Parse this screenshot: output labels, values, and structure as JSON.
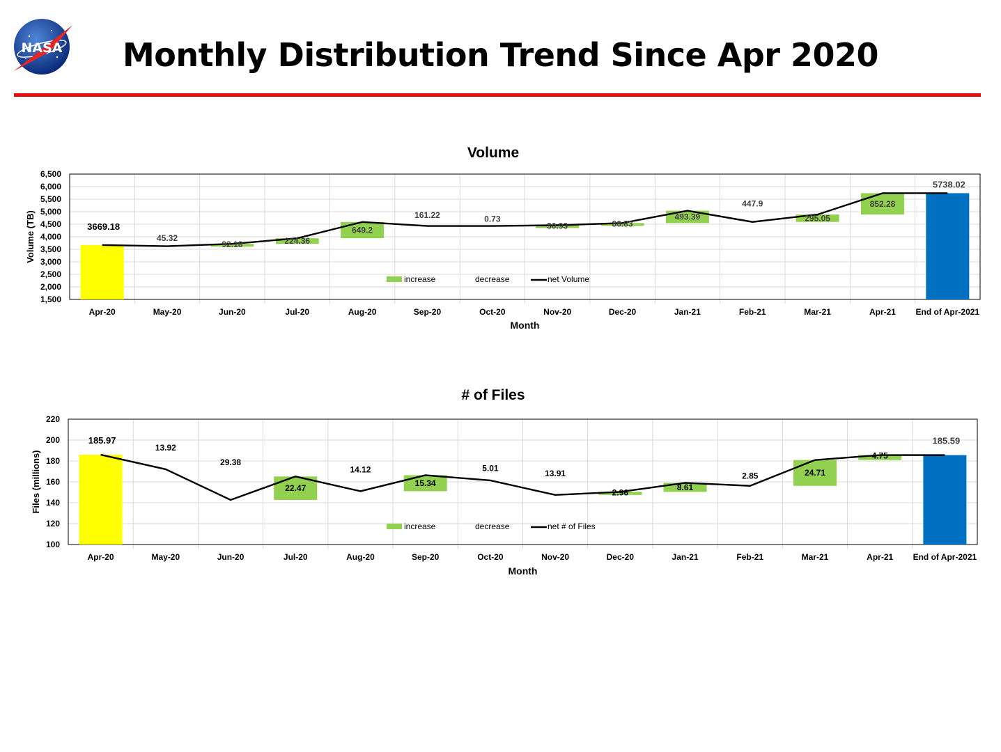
{
  "page": {
    "title": "Monthly Distribution Trend Since Apr 2020",
    "logo_text": "NASA",
    "colors": {
      "rule": "#e30b0b",
      "increase": "#92d050",
      "start": "#ffff00",
      "end": "#0070c0",
      "line": "#000000"
    }
  },
  "chart_data": [
    {
      "type": "bar",
      "subtype": "waterfall",
      "title": "Volume",
      "xlabel": "Month",
      "ylabel": "Volume (TB)",
      "ylim": [
        1500,
        6500
      ],
      "yticks": [
        1500,
        2000,
        2500,
        3000,
        3500,
        4000,
        4500,
        5000,
        5500,
        6000,
        6500
      ],
      "ytick_labels": [
        "1,500",
        "2,000",
        "2,500",
        "3,000",
        "3,500",
        "4,000",
        "4,500",
        "5,000",
        "5,500",
        "6,000",
        "6,500"
      ],
      "categories": [
        "Apr-20",
        "May-20",
        "Jun-20",
        "Jul-20",
        "Aug-20",
        "Sep-20",
        "Oct-20",
        "Nov-20",
        "Dec-20",
        "Jan-21",
        "Feb-21",
        "Mar-21",
        "Apr-21",
        "End of Apr-2021"
      ],
      "start_value": 3669.18,
      "start_label": "3669.18",
      "end_value": 5738.02,
      "end_label": "5738.02",
      "changes": [
        null,
        -45.32,
        92.18,
        224.36,
        649.2,
        -161.22,
        -0.73,
        30.93,
        86.83,
        493.39,
        -447.9,
        295.05,
        852.28,
        null
      ],
      "change_labels": [
        "",
        "45.32",
        "92.18",
        "224.36",
        "649.2",
        "161.22",
        "0.73",
        "30.93",
        "86.83",
        "493.39",
        "447.9",
        "295.05",
        "852.28",
        ""
      ],
      "net": [
        3669.18,
        3623.86,
        3716.04,
        3940.4,
        4589.6,
        4428.38,
        4427.65,
        4458.58,
        4545.41,
        5038.8,
        4590.9,
        4885.95,
        5738.23,
        5738.02
      ],
      "legend": [
        "increase",
        "decrease",
        "net Volume"
      ],
      "legend_position": "center"
    },
    {
      "type": "bar",
      "subtype": "waterfall",
      "title": "# of Files",
      "xlabel": "Month",
      "ylabel": "Files (millions)",
      "ylim": [
        100,
        220
      ],
      "yticks": [
        100,
        120,
        140,
        160,
        180,
        200,
        220
      ],
      "ytick_labels": [
        "100",
        "120",
        "140",
        "160",
        "180",
        "200",
        "220"
      ],
      "categories": [
        "Apr-20",
        "May-20",
        "Jun-20",
        "Jul-20",
        "Aug-20",
        "Sep-20",
        "Oct-20",
        "Nov-20",
        "Dec-20",
        "Jan-21",
        "Feb-21",
        "Mar-21",
        "Apr-21",
        "End of Apr-2021"
      ],
      "start_value": 185.97,
      "start_label": "185.97",
      "end_value": 185.59,
      "end_label": "185.59",
      "changes": [
        null,
        -13.92,
        -29.38,
        22.47,
        -14.12,
        15.34,
        -5.01,
        -13.91,
        2.96,
        8.61,
        -2.85,
        24.71,
        4.75,
        null
      ],
      "change_labels": [
        "",
        "13.92",
        "29.38",
        "22.47",
        "14.12",
        "15.34",
        "5.01",
        "13.91",
        "2.96",
        "8.61",
        "2.85",
        "24.71",
        "4.75",
        ""
      ],
      "net": [
        185.97,
        172.05,
        142.67,
        165.14,
        151.02,
        166.36,
        161.35,
        147.44,
        150.4,
        159.01,
        156.16,
        180.87,
        185.62,
        185.59
      ],
      "legend": [
        "increase",
        "decrease",
        "net # of Files"
      ],
      "legend_position": "center"
    }
  ]
}
